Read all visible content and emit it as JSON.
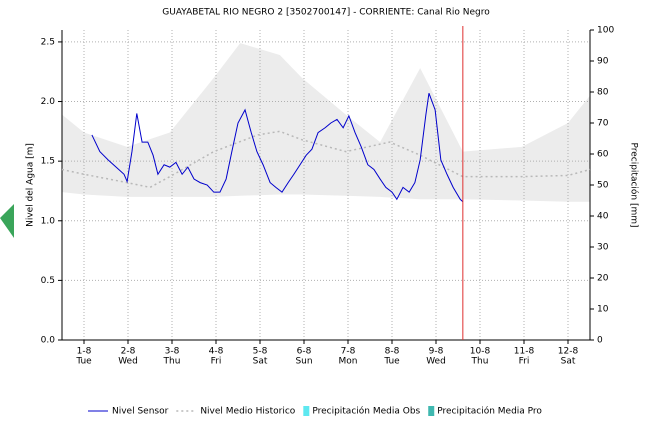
{
  "chart_data": {
    "type": "line",
    "title": "GUAYABETAL RIO NEGRO 2 [3502700147] - CORRIENTE: Canal Rio Negro",
    "y_label": "Nivel del Agua [m]",
    "y2_label": "Precipitación [mm]",
    "xlim": [
      0.5,
      12.5
    ],
    "xticks": [
      {
        "value": 1,
        "label": "1-8"
      },
      {
        "value": 2,
        "label": "2-8"
      },
      {
        "value": 3,
        "label": "3-8"
      },
      {
        "value": 4,
        "label": "4-8"
      },
      {
        "value": 5,
        "label": "5-8"
      },
      {
        "value": 6,
        "label": "6-8"
      },
      {
        "value": 7,
        "label": "7-8"
      },
      {
        "value": 8,
        "label": "8-8"
      },
      {
        "value": 9,
        "label": "9-8"
      },
      {
        "value": 10,
        "label": "10-8"
      },
      {
        "value": 11,
        "label": "11-8"
      },
      {
        "value": 12,
        "label": "12-8"
      }
    ],
    "xtick_days": [
      "Tue",
      "Wed",
      "Thu",
      "Fri",
      "Sat",
      "Sun",
      "Mon",
      "Tue",
      "Wed",
      "Thu",
      "Fri",
      "Sat"
    ],
    "ylim": [
      0,
      2.6
    ],
    "yticks": [
      {
        "value": 0,
        "label": "0.0"
      },
      0.5,
      {
        "value": 1,
        "label": "1.0"
      },
      1.5,
      {
        "value": 2,
        "label": "2.0"
      },
      2.5
    ],
    "y2lim": [
      0,
      100
    ],
    "y2ticks": [
      0,
      10,
      20,
      30,
      40,
      50,
      60,
      70,
      80,
      90,
      100
    ],
    "grid": true,
    "marker_x": 9.61,
    "marker_color": "#e03030",
    "band": {
      "color": "#ececec",
      "x": [
        0.5,
        1,
        1.98,
        2.95,
        3.95,
        4.55,
        5.45,
        5.95,
        6.95,
        7.73,
        8.64,
        9.61,
        10.95,
        12,
        12.5
      ],
      "upper": [
        1.89,
        1.74,
        1.62,
        1.74,
        2.2,
        2.49,
        2.39,
        2.2,
        1.89,
        1.66,
        2.28,
        1.58,
        1.62,
        1.82,
        2.05
      ],
      "lower": [
        1.24,
        1.22,
        1.2,
        1.2,
        1.2,
        1.21,
        1.22,
        1.22,
        1.21,
        1.2,
        1.18,
        1.18,
        1.17,
        1.16,
        1.16
      ]
    },
    "series": [
      {
        "name": "Nivel Sensor",
        "color": "#0000cc",
        "style": "solid",
        "x": [
          1.18,
          1.36,
          1.55,
          1.73,
          1.91,
          1.98,
          2.09,
          2.2,
          2.32,
          2.45,
          2.57,
          2.68,
          2.82,
          2.95,
          3.09,
          3.23,
          3.36,
          3.5,
          3.64,
          3.8,
          3.95,
          4.09,
          4.23,
          4.36,
          4.5,
          4.66,
          4.8,
          4.93,
          5.07,
          5.23,
          5.36,
          5.5,
          5.64,
          5.77,
          5.91,
          6.05,
          6.18,
          6.32,
          6.48,
          6.61,
          6.75,
          6.89,
          7.02,
          7.16,
          7.3,
          7.45,
          7.59,
          7.73,
          7.86,
          8.0,
          8.11,
          8.25,
          8.39,
          8.52,
          8.64,
          8.77,
          8.84,
          8.98,
          9.11,
          9.25,
          9.39,
          9.55,
          9.61
        ],
        "values": [
          1.72,
          1.58,
          1.51,
          1.45,
          1.39,
          1.33,
          1.58,
          1.9,
          1.66,
          1.66,
          1.55,
          1.39,
          1.47,
          1.45,
          1.49,
          1.39,
          1.45,
          1.35,
          1.32,
          1.3,
          1.24,
          1.24,
          1.35,
          1.58,
          1.82,
          1.93,
          1.74,
          1.58,
          1.47,
          1.32,
          1.28,
          1.24,
          1.32,
          1.39,
          1.47,
          1.55,
          1.6,
          1.74,
          1.78,
          1.82,
          1.85,
          1.78,
          1.88,
          1.74,
          1.62,
          1.47,
          1.43,
          1.35,
          1.28,
          1.24,
          1.18,
          1.28,
          1.24,
          1.32,
          1.51,
          1.89,
          2.07,
          1.93,
          1.51,
          1.39,
          1.28,
          1.18,
          1.16
        ]
      },
      {
        "name": "Nivel Medio Historico",
        "color": "#b8b8b8",
        "style": "dotted",
        "x": [
          0.5,
          1,
          1.98,
          2.5,
          2.95,
          3.95,
          4.95,
          5.45,
          5.95,
          6.95,
          7.95,
          8.64,
          9.61,
          10.95,
          12,
          12.5
        ],
        "values": [
          1.43,
          1.39,
          1.32,
          1.28,
          1.37,
          1.58,
          1.72,
          1.75,
          1.68,
          1.58,
          1.66,
          1.55,
          1.37,
          1.37,
          1.38,
          1.43
        ]
      },
      {
        "name": "Precipitación Media Obs",
        "color": "#5ee8f0",
        "style": "box",
        "axis": "y2",
        "x": [],
        "values": []
      },
      {
        "name": "Precipitación Media Pro",
        "color": "#3fb8b0",
        "style": "box",
        "axis": "y2",
        "x": [],
        "values": []
      }
    ]
  }
}
